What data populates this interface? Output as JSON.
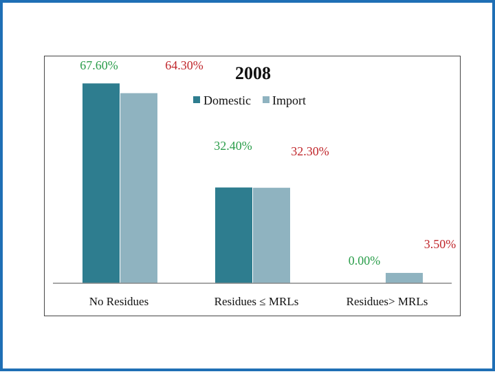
{
  "chart_data": {
    "type": "bar",
    "title": "2008",
    "categories": [
      "No Residues",
      "Residues ≤ MRLs",
      "Residues> MRLs"
    ],
    "series": [
      {
        "name": "Domestic",
        "values": [
          67.6,
          32.4,
          0.0
        ],
        "labels": [
          "67.60%",
          "32.40%",
          "0.00%"
        ],
        "color": "#2e7d8f",
        "label_color": "#2a9d4a"
      },
      {
        "name": "Import",
        "values": [
          64.3,
          32.3,
          3.5
        ],
        "labels": [
          "64.30%",
          "32.30%",
          "3.50%"
        ],
        "color": "#8fb3c0",
        "label_color": "#c0262b"
      }
    ],
    "xlabel": "",
    "ylabel": "",
    "ylim": [
      0,
      70
    ],
    "grid": false,
    "legend": "top-center"
  },
  "colors": {
    "frame_border": "#1f6fb5",
    "axis": "#888888"
  }
}
